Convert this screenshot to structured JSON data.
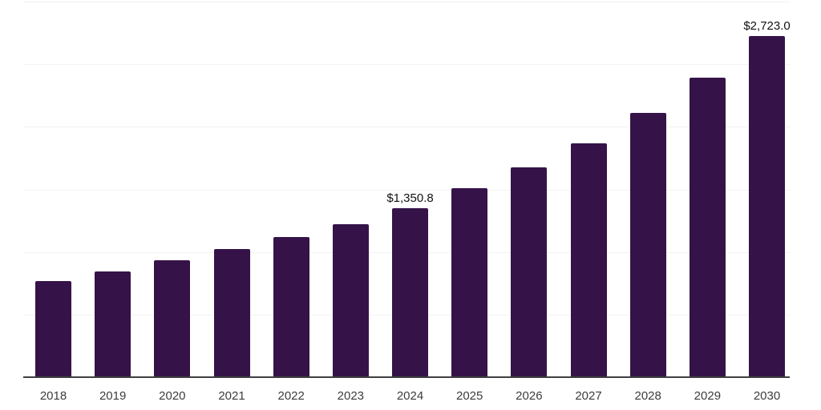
{
  "chart_data": {
    "type": "bar",
    "categories": [
      "2018",
      "2019",
      "2020",
      "2021",
      "2022",
      "2023",
      "2024",
      "2025",
      "2026",
      "2027",
      "2028",
      "2029",
      "2030"
    ],
    "values": [
      766,
      844,
      935,
      1022,
      1120,
      1221,
      1350.8,
      1510,
      1674,
      1868,
      2110,
      2392,
      2723
    ],
    "data_labels": [
      "",
      "",
      "",
      "",
      "",
      "",
      "$1,350.8",
      "",
      "",
      "",
      "",
      "",
      "$2,723.0"
    ],
    "title": "",
    "xlabel": "",
    "ylabel": "",
    "ylim": [
      0,
      3000
    ],
    "gridline_interval": 500,
    "grid": true,
    "legend": false,
    "bar_color": "#351349",
    "axis_line_color": "#3f3f3f",
    "gridline_color": "#f2f2f2",
    "x_tick_color": "#3c3c3c",
    "data_label_color": "#111111",
    "background_color": "#ffffff"
  }
}
